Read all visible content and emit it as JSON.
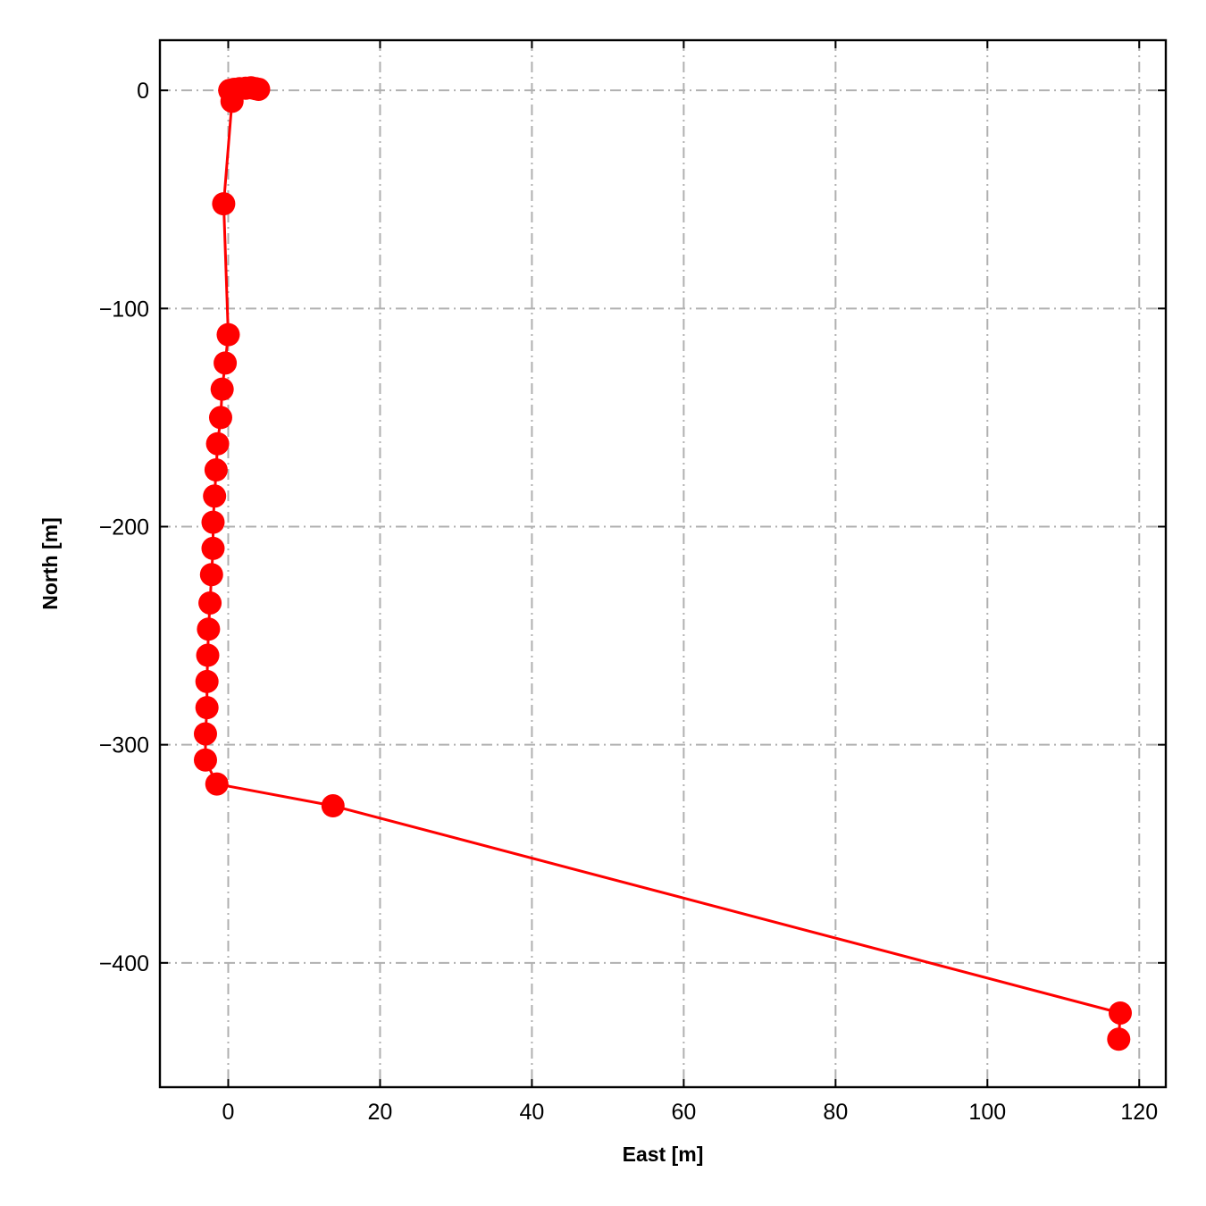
{
  "chart_data": {
    "type": "line",
    "xlabel": "East [m]",
    "ylabel": "North [m]",
    "xlim": [
      -9,
      123.5
    ],
    "ylim": [
      -457,
      23
    ],
    "xticks": [
      0,
      20,
      40,
      60,
      80,
      100,
      120
    ],
    "yticks": [
      0,
      -100,
      -200,
      -300,
      -400
    ],
    "x_tick_labels": [
      "0",
      "20",
      "40",
      "60",
      "80",
      "100",
      "120"
    ],
    "y_tick_labels": [
      "0",
      "−100",
      "−200",
      "−300",
      "−400"
    ],
    "grid": true,
    "grid_style": "dash-dot",
    "series": [
      {
        "color": "#ff0000",
        "marker": "circle",
        "points": [
          [
            0.2,
            0.0
          ],
          [
            0.8,
            0.5
          ],
          [
            1.5,
            0.8
          ],
          [
            2.3,
            1.0
          ],
          [
            3.0,
            1.2
          ],
          [
            3.6,
            0.8
          ],
          [
            4.0,
            0.5
          ],
          [
            0.5,
            -5.0
          ],
          [
            -0.6,
            -52.0
          ],
          [
            0.0,
            -112.0
          ],
          [
            -0.4,
            -125.0
          ],
          [
            -0.8,
            -137.0
          ],
          [
            -1.0,
            -150.0
          ],
          [
            -1.4,
            -162.0
          ],
          [
            -1.6,
            -174.0
          ],
          [
            -1.8,
            -186.0
          ],
          [
            -2.0,
            -198.0
          ],
          [
            -2.0,
            -210.0
          ],
          [
            -2.2,
            -222.0
          ],
          [
            -2.4,
            -235.0
          ],
          [
            -2.6,
            -247.0
          ],
          [
            -2.7,
            -259.0
          ],
          [
            -2.8,
            -271.0
          ],
          [
            -2.8,
            -283.0
          ],
          [
            -3.0,
            -295.0
          ],
          [
            -3.0,
            -307.0
          ],
          [
            -1.5,
            -318.0
          ],
          [
            13.8,
            -328.0
          ],
          [
            117.5,
            -423.0
          ],
          [
            117.3,
            -435.0
          ]
        ]
      }
    ]
  },
  "colors": {
    "series": "#ff0000",
    "grid": "#b0b0b0",
    "axes": "#000000"
  }
}
